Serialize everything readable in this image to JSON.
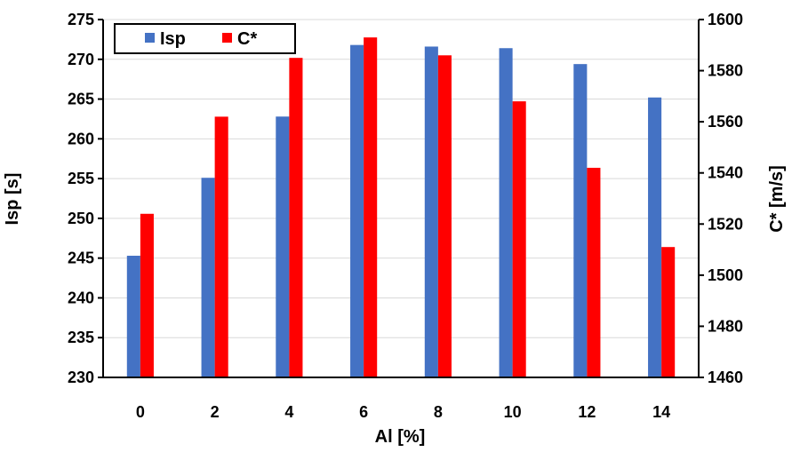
{
  "chart_data": {
    "type": "bar",
    "x": [
      0,
      2,
      4,
      6,
      8,
      10,
      12,
      14
    ],
    "xlabel": "Al [%]",
    "ylabel": "Isp [s]",
    "y2label": "C* [m/s]",
    "ylim": [
      230,
      275
    ],
    "y2lim": [
      1460,
      1600
    ],
    "yticks": [
      230,
      235,
      240,
      245,
      250,
      255,
      260,
      265,
      270,
      275
    ],
    "y2ticks": [
      1460,
      1480,
      1500,
      1520,
      1540,
      1560,
      1580,
      1600
    ],
    "grid": true,
    "legend": "top-left",
    "series": [
      {
        "name": "Isp",
        "axis": "left",
        "color": "#4472C4",
        "values": [
          245.3,
          255.1,
          262.8,
          271.8,
          271.6,
          271.4,
          269.4,
          265.2
        ]
      },
      {
        "name": "C*",
        "axis": "right",
        "color": "#FF0000",
        "values": [
          1524,
          1562,
          1585,
          1593,
          1586,
          1568,
          1542,
          1511
        ]
      }
    ]
  }
}
